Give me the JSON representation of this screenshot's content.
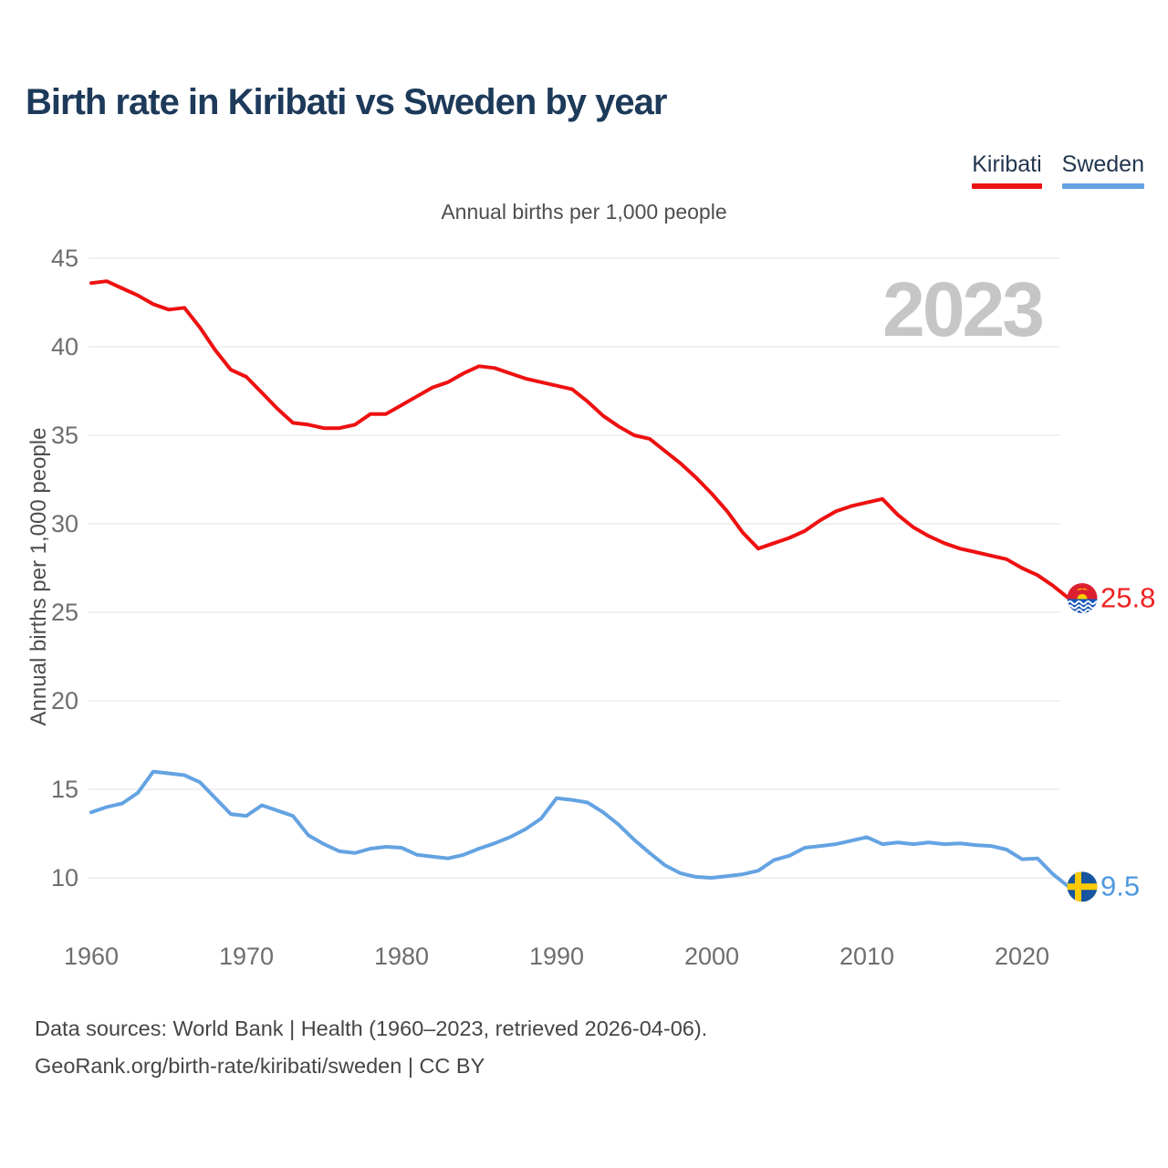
{
  "header": {
    "title": "Birth rate in Kiribati vs Sweden by year"
  },
  "legend": {
    "items": [
      {
        "label": "Kiribati",
        "color": "#ee1111"
      },
      {
        "label": "Sweden",
        "color": "#64a3e2"
      }
    ]
  },
  "watermark": "2023",
  "chart_data": {
    "type": "line",
    "title": "Annual births per 1,000 people",
    "ylabel": "Annual births per 1,000 people",
    "xlabel": "",
    "grid": true,
    "legend_position": "top-right",
    "ylim": [
      10,
      45
    ],
    "xlim": [
      1960,
      2023
    ],
    "yticks": [
      45,
      40,
      35,
      30,
      25,
      20,
      15,
      10
    ],
    "xticks": [
      1960,
      1970,
      1980,
      1990,
      2000,
      2010,
      2020
    ],
    "x": [
      1960,
      1961,
      1962,
      1963,
      1964,
      1965,
      1966,
      1967,
      1968,
      1969,
      1970,
      1971,
      1972,
      1973,
      1974,
      1975,
      1976,
      1977,
      1978,
      1979,
      1980,
      1981,
      1982,
      1983,
      1984,
      1985,
      1986,
      1987,
      1988,
      1989,
      1990,
      1991,
      1992,
      1993,
      1994,
      1995,
      1996,
      1997,
      1998,
      1999,
      2000,
      2001,
      2002,
      2003,
      2004,
      2005,
      2006,
      2007,
      2008,
      2009,
      2010,
      2011,
      2012,
      2013,
      2014,
      2015,
      2016,
      2017,
      2018,
      2019,
      2020,
      2021,
      2022,
      2023
    ],
    "series": [
      {
        "name": "Kiribati",
        "color": "#ee1111",
        "value_color": "#ee2222",
        "flag_icon": "kiribati-flag-icon",
        "end_label": "25.8",
        "values": [
          43.6,
          43.7,
          43.3,
          42.9,
          42.4,
          42.1,
          42.2,
          41.1,
          39.8,
          38.7,
          38.3,
          37.4,
          36.5,
          35.7,
          35.6,
          35.4,
          35.4,
          35.6,
          36.2,
          36.2,
          36.7,
          37.2,
          37.7,
          38.0,
          38.5,
          38.9,
          38.8,
          38.5,
          38.2,
          38.0,
          37.8,
          37.6,
          36.9,
          36.1,
          35.5,
          35.0,
          34.8,
          34.1,
          33.4,
          32.6,
          31.7,
          30.7,
          29.5,
          28.6,
          28.9,
          29.2,
          29.6,
          30.2,
          30.7,
          31.0,
          31.2,
          31.4,
          30.5,
          29.8,
          29.3,
          28.9,
          28.6,
          28.4,
          28.2,
          28.0,
          27.5,
          27.1,
          26.5,
          25.8
        ]
      },
      {
        "name": "Sweden",
        "color": "#64a3e2",
        "value_color": "#4e9ade",
        "flag_icon": "sweden-flag-icon",
        "end_label": "9.5",
        "values": [
          13.7,
          14.0,
          14.2,
          14.8,
          16.0,
          15.9,
          15.8,
          15.4,
          14.5,
          13.6,
          13.5,
          14.1,
          13.8,
          13.5,
          12.4,
          11.9,
          11.5,
          11.4,
          11.65,
          11.75,
          11.7,
          11.3,
          11.2,
          11.1,
          11.3,
          11.65,
          11.95,
          12.3,
          12.75,
          13.35,
          14.5,
          14.4,
          14.25,
          13.7,
          13.0,
          12.15,
          11.4,
          10.7,
          10.25,
          10.05,
          10.0,
          10.1,
          10.2,
          10.4,
          11.0,
          11.25,
          11.7,
          11.8,
          11.9,
          12.1,
          12.3,
          11.9,
          12.0,
          11.9,
          12.0,
          11.9,
          11.95,
          11.85,
          11.8,
          11.6,
          11.05,
          11.1,
          10.2,
          9.5
        ]
      }
    ]
  },
  "footer": {
    "line1": "Data sources: World Bank | Health (1960–2023, retrieved 2026-04-06).",
    "line2": "GeoRank.org/birth-rate/kiribati/sweden | CC BY"
  }
}
